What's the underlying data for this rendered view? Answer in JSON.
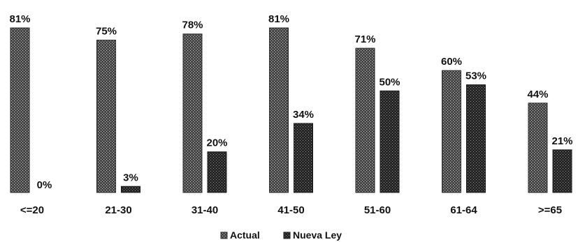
{
  "chart_data": {
    "type": "bar",
    "categories": [
      "<=20",
      "21-30",
      "31-40",
      "41-50",
      "51-60",
      "61-64",
      ">=65"
    ],
    "series": [
      {
        "name": "Actual",
        "values": [
          81,
          75,
          78,
          81,
          71,
          60,
          44
        ],
        "labels": [
          "81%",
          "75%",
          "78%",
          "81%",
          "71%",
          "60%",
          "44%"
        ],
        "color": "#3a3a3a"
      },
      {
        "name": "Nueva Ley",
        "values": [
          0,
          3,
          20,
          34,
          50,
          53,
          21
        ],
        "labels": [
          "0%",
          "3%",
          "20%",
          "34%",
          "50%",
          "53%",
          "21%"
        ],
        "color": "#1e1e1e"
      }
    ],
    "title": "",
    "xlabel": "",
    "ylabel": "",
    "ylim": [
      0,
      81
    ],
    "grid": false,
    "legend": "bottom-center"
  }
}
